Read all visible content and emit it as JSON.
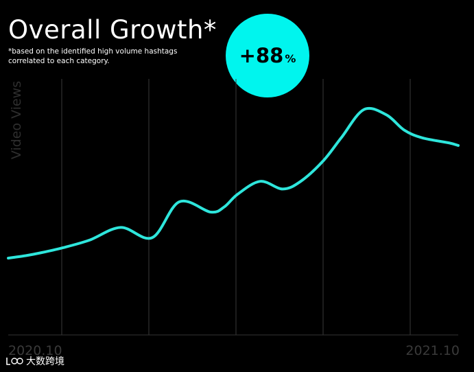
{
  "header": {
    "title": "Overall Growth*",
    "subtitle_line1": "*based on the identified high volume hashtags",
    "subtitle_line2": "correlated to each category."
  },
  "badge": {
    "value": "+88",
    "unit": "%",
    "color": "#00f5ee"
  },
  "watermark": {
    "text": "大数跨境"
  },
  "chart_data": {
    "type": "line",
    "ylabel": "Video Views",
    "x_tick_labels": [
      "2020.10",
      "2021.10"
    ],
    "vertical_gridlines": 5,
    "series_color": "#2ee6dc",
    "x": [
      0,
      0.04,
      0.07,
      0.12,
      0.18,
      0.25,
      0.32,
      0.38,
      0.45,
      0.48,
      0.51,
      0.56,
      0.61,
      0.65,
      0.7,
      0.74,
      0.79,
      0.84,
      0.88,
      0.92,
      0.98,
      1.0
    ],
    "values": [
      0.3,
      0.31,
      0.32,
      0.34,
      0.37,
      0.42,
      0.38,
      0.52,
      0.48,
      0.5,
      0.55,
      0.6,
      0.57,
      0.6,
      0.68,
      0.77,
      0.88,
      0.86,
      0.8,
      0.77,
      0.75,
      0.74
    ],
    "xlim": [
      0,
      1
    ],
    "ylim": [
      0,
      1
    ]
  }
}
